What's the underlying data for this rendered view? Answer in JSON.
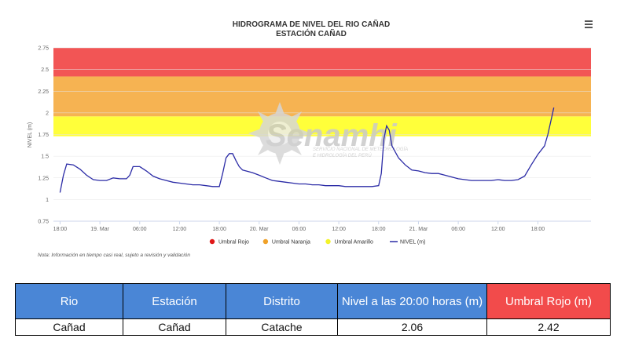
{
  "chart_data": {
    "type": "line",
    "title": "HIDROGRAMA DE NIVEL DEL RIO CAÑAD",
    "subtitle": "ESTACIÓN CAÑAD",
    "ylabel": "NIVEL (m)",
    "ylim": [
      0.75,
      2.75
    ],
    "yticks": [
      "0.75",
      "1",
      "1.25",
      "1.5",
      "1.75",
      "2",
      "2.25",
      "2.5",
      "2.75"
    ],
    "xticks": [
      {
        "label": "18:00",
        "t": 0
      },
      {
        "label": "19. Mar",
        "t": 6
      },
      {
        "label": "06:00",
        "t": 12
      },
      {
        "label": "12:00",
        "t": 18
      },
      {
        "label": "18:00",
        "t": 24
      },
      {
        "label": "20. Mar",
        "t": 30
      },
      {
        "label": "06:00",
        "t": 36
      },
      {
        "label": "12:00",
        "t": 42
      },
      {
        "label": "18:00",
        "t": 48
      },
      {
        "label": "21. Mar",
        "t": 54
      },
      {
        "label": "06:00",
        "t": 60
      },
      {
        "label": "12:00",
        "t": 66
      },
      {
        "label": "18:00",
        "t": 72
      }
    ],
    "bands": [
      {
        "name": "Umbral Amarillo",
        "from": 1.73,
        "to": 1.96,
        "color": "#ffff3a"
      },
      {
        "name": "Umbral Naranja",
        "from": 1.96,
        "to": 2.42,
        "color": "#f6b352"
      },
      {
        "name": "Umbral Rojo",
        "from": 2.42,
        "to": 2.75,
        "color": "#f25555"
      }
    ],
    "series": [
      {
        "name": "NIVEL (m)",
        "color": "#2b2ba6",
        "points": [
          [
            0,
            1.08
          ],
          [
            0.5,
            1.28
          ],
          [
            1,
            1.41
          ],
          [
            2,
            1.4
          ],
          [
            3,
            1.35
          ],
          [
            4,
            1.28
          ],
          [
            5,
            1.23
          ],
          [
            6,
            1.22
          ],
          [
            7,
            1.22
          ],
          [
            8,
            1.25
          ],
          [
            9,
            1.24
          ],
          [
            10,
            1.24
          ],
          [
            10.5,
            1.28
          ],
          [
            11,
            1.38
          ],
          [
            12,
            1.38
          ],
          [
            13,
            1.33
          ],
          [
            14,
            1.27
          ],
          [
            15,
            1.24
          ],
          [
            16,
            1.22
          ],
          [
            17,
            1.2
          ],
          [
            18,
            1.19
          ],
          [
            19,
            1.18
          ],
          [
            20,
            1.17
          ],
          [
            21,
            1.17
          ],
          [
            22,
            1.16
          ],
          [
            23,
            1.15
          ],
          [
            24,
            1.15
          ],
          [
            24.5,
            1.3
          ],
          [
            25,
            1.48
          ],
          [
            25.5,
            1.53
          ],
          [
            26,
            1.53
          ],
          [
            26.5,
            1.45
          ],
          [
            27,
            1.38
          ],
          [
            27.5,
            1.34
          ],
          [
            28,
            1.33
          ],
          [
            29,
            1.31
          ],
          [
            30,
            1.28
          ],
          [
            31,
            1.25
          ],
          [
            32,
            1.22
          ],
          [
            33,
            1.21
          ],
          [
            34,
            1.2
          ],
          [
            35,
            1.19
          ],
          [
            36,
            1.18
          ],
          [
            37,
            1.18
          ],
          [
            38,
            1.17
          ],
          [
            39,
            1.17
          ],
          [
            40,
            1.16
          ],
          [
            41,
            1.16
          ],
          [
            42,
            1.16
          ],
          [
            43,
            1.15
          ],
          [
            44,
            1.15
          ],
          [
            45,
            1.15
          ],
          [
            46,
            1.15
          ],
          [
            47,
            1.15
          ],
          [
            48,
            1.16
          ],
          [
            48.4,
            1.3
          ],
          [
            48.8,
            1.7
          ],
          [
            49.2,
            1.85
          ],
          [
            49.6,
            1.8
          ],
          [
            50,
            1.62
          ],
          [
            51,
            1.48
          ],
          [
            52,
            1.4
          ],
          [
            53,
            1.34
          ],
          [
            54,
            1.33
          ],
          [
            55,
            1.31
          ],
          [
            56,
            1.3
          ],
          [
            57,
            1.3
          ],
          [
            58,
            1.28
          ],
          [
            59,
            1.26
          ],
          [
            60,
            1.24
          ],
          [
            61,
            1.23
          ],
          [
            62,
            1.22
          ],
          [
            63,
            1.22
          ],
          [
            64,
            1.22
          ],
          [
            65,
            1.22
          ],
          [
            66,
            1.23
          ],
          [
            67,
            1.22
          ],
          [
            68,
            1.22
          ],
          [
            69,
            1.23
          ],
          [
            70,
            1.27
          ],
          [
            71,
            1.4
          ],
          [
            72,
            1.52
          ],
          [
            73,
            1.62
          ],
          [
            73.5,
            1.75
          ],
          [
            74,
            1.92
          ],
          [
            74.4,
            2.06
          ]
        ]
      }
    ],
    "legend": [
      {
        "label": "Umbral Rojo",
        "color": "#e01818"
      },
      {
        "label": "Umbral Naranja",
        "color": "#f0a128"
      },
      {
        "label": "Umbral Amarillo",
        "color": "#f3f32a"
      },
      {
        "label": "NIVEL (m)",
        "color": "#2b2ba6"
      }
    ],
    "note": "Nota: Información en tiempo casi real, sujeto a revisión y validación",
    "watermark": {
      "brand": "Senamhi",
      "line1": "SERVICIO NACIONAL DE METEOROLOGÍA",
      "line2": "E HIDROLOGÍA DEL PERÚ"
    }
  },
  "table": {
    "headers": [
      "Rio",
      "Estación",
      "Distrito",
      "Nivel a las 20:00 horas (m)",
      "Umbral Rojo (m)"
    ],
    "row": [
      "Cañad",
      "Cañad",
      "Catache",
      "2.06",
      "2.42"
    ]
  }
}
